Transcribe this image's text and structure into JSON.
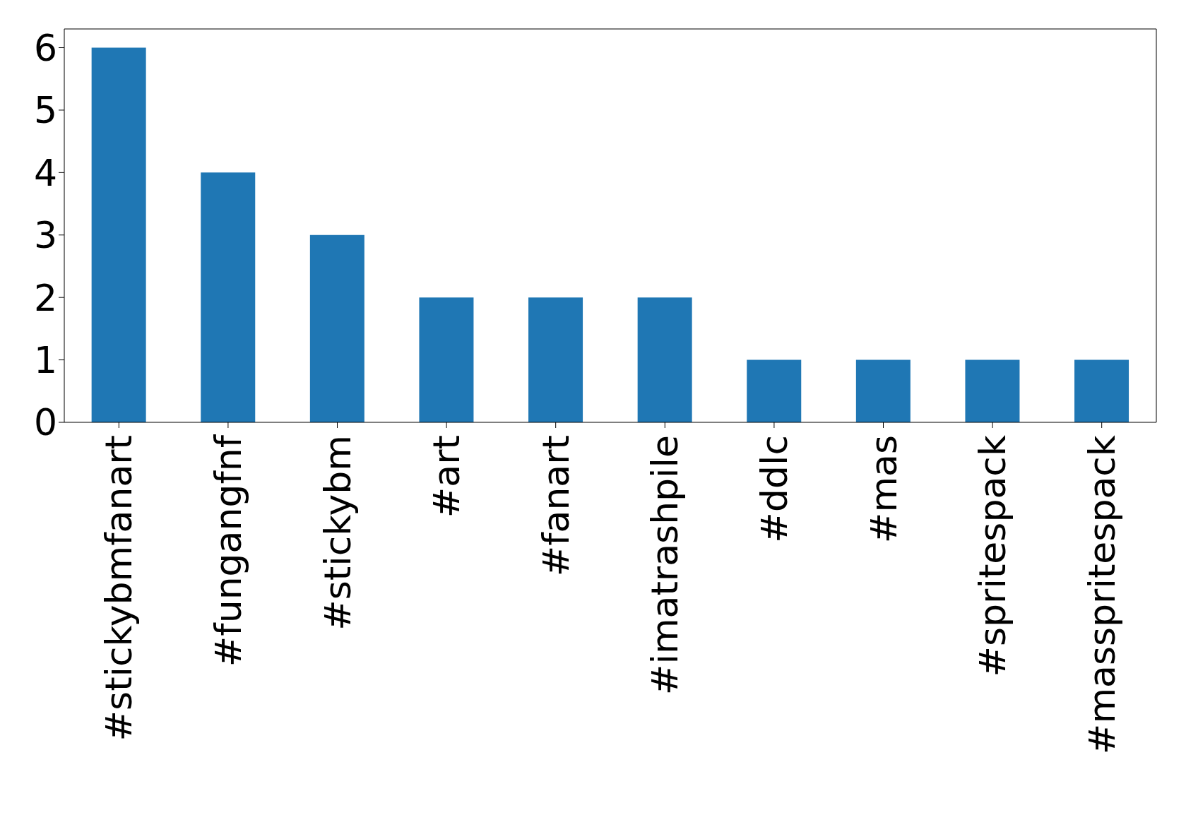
{
  "chart_data": {
    "type": "bar",
    "categories": [
      "#stickybmfanart",
      "#fungangfnf",
      "#stickybm",
      "#art",
      "#fanart",
      "#imatrashpile",
      "#ddlc",
      "#mas",
      "#spritespack",
      "#masspritespack"
    ],
    "values": [
      6,
      4,
      3,
      2,
      2,
      2,
      1,
      1,
      1,
      1
    ],
    "color": "#1f77b4",
    "ylim": [
      0,
      6.3
    ],
    "yticks": [
      0,
      1,
      2,
      3,
      4,
      5,
      6
    ],
    "grid": false,
    "legend": false
  }
}
